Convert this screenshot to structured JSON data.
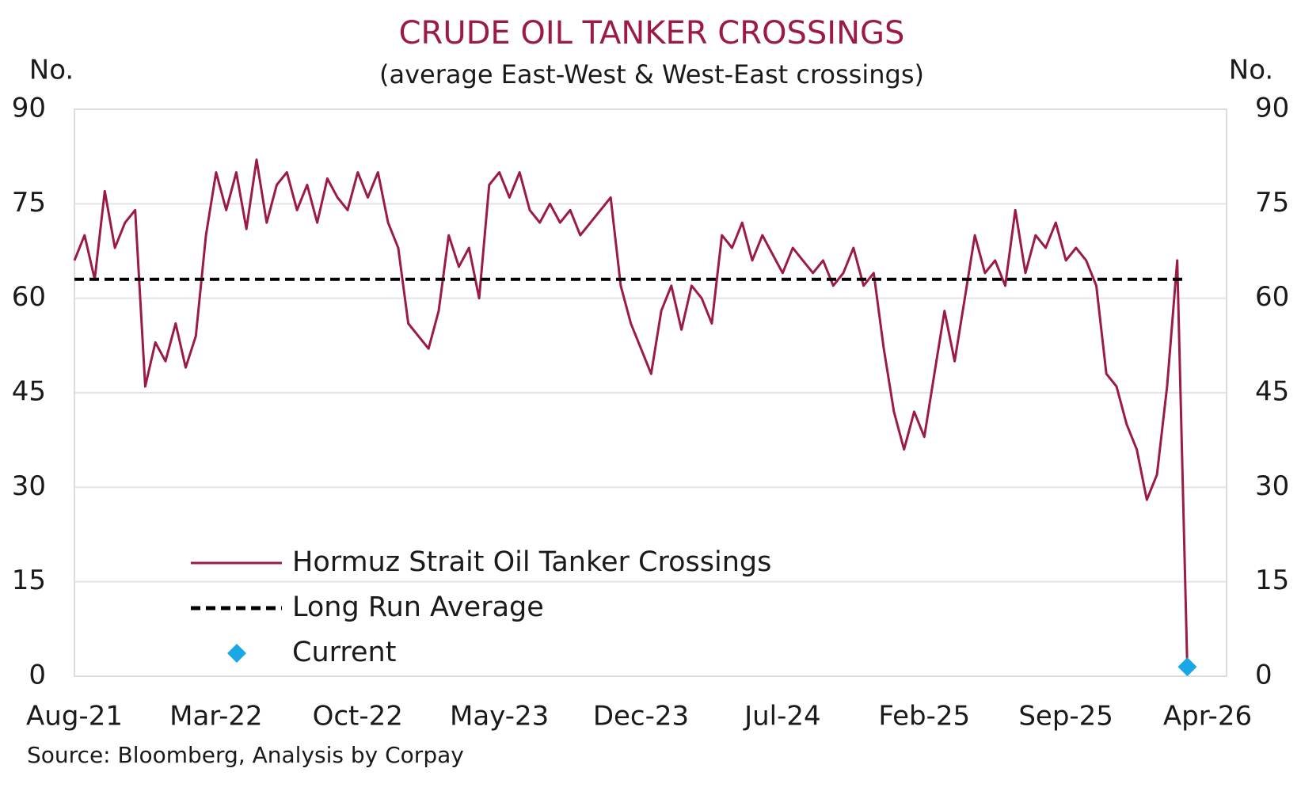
{
  "chart_data": {
    "type": "line",
    "title": "CRUDE OIL TANKER CROSSINGS",
    "subtitle": "(average East-West & West-East crossings)",
    "y_label": "No.",
    "y2_label": "No.",
    "source": "Source: Bloomberg, Analysis by Corpay",
    "categories": [
      "Aug-21",
      null,
      null,
      null,
      null,
      null,
      null,
      null,
      null,
      null,
      null,
      null,
      null,
      null,
      "Mar-22",
      null,
      null,
      null,
      null,
      null,
      null,
      null,
      null,
      null,
      null,
      null,
      null,
      null,
      "Oct-22",
      null,
      null,
      null,
      null,
      null,
      null,
      null,
      null,
      null,
      null,
      null,
      null,
      null,
      "May-23",
      null,
      null,
      null,
      null,
      null,
      null,
      null,
      null,
      null,
      null,
      null,
      null,
      null,
      "Dec-23",
      null,
      null,
      null,
      null,
      null,
      null,
      null,
      null,
      null,
      null,
      null,
      null,
      null,
      "Jul-24",
      null,
      null,
      null,
      null,
      null,
      null,
      null,
      null,
      null,
      null,
      null,
      null,
      null,
      "Feb-25",
      null,
      null,
      null,
      null,
      null,
      null,
      null,
      null,
      null,
      null,
      null,
      null,
      null,
      "Sep-25",
      null,
      null,
      null,
      null,
      null,
      null,
      null,
      null,
      null,
      null,
      null,
      null,
      null,
      "Apr-26"
    ],
    "series": [
      {
        "name": "Hormuz Strait Oil Tanker Crossings",
        "color": "#9b1b45",
        "style": "solid",
        "values": [
          66,
          70,
          63,
          77,
          68,
          72,
          74,
          46,
          53,
          50,
          56,
          49,
          54,
          70,
          80,
          74,
          80,
          71,
          82,
          72,
          78,
          80,
          74,
          78,
          72,
          79,
          76,
          74,
          80,
          76,
          80,
          72,
          68,
          56,
          54,
          52,
          58,
          70,
          65,
          68,
          60,
          78,
          80,
          76,
          80,
          74,
          72,
          75,
          72,
          74,
          70,
          72,
          74,
          76,
          62,
          56,
          52,
          48,
          58,
          62,
          55,
          62,
          60,
          56,
          70,
          68,
          72,
          66,
          70,
          67,
          64,
          68,
          66,
          64,
          66,
          62,
          64,
          68,
          62,
          64,
          52,
          42,
          36,
          42,
          38,
          48,
          58,
          50,
          60,
          70,
          64,
          66,
          62,
          74,
          64,
          70,
          68,
          72,
          66,
          68,
          66,
          62,
          48,
          46,
          40,
          36,
          28,
          32,
          46,
          66,
          1.5,
          null,
          null
        ]
      },
      {
        "name": "Long Run Average",
        "color": "#000000",
        "style": "dashed",
        "values": [
          63,
          63,
          63,
          63,
          63,
          63,
          63,
          63,
          63,
          63,
          63,
          63,
          63,
          63,
          63,
          63,
          63,
          63,
          63,
          63,
          63,
          63,
          63,
          63,
          63,
          63,
          63,
          63,
          63,
          63,
          63,
          63,
          63,
          63,
          63,
          63,
          63,
          63,
          63,
          63,
          63,
          63,
          63,
          63,
          63,
          63,
          63,
          63,
          63,
          63,
          63,
          63,
          63,
          63,
          63,
          63,
          63,
          63,
          63,
          63,
          63,
          63,
          63,
          63,
          63,
          63,
          63,
          63,
          63,
          63,
          63,
          63,
          63,
          63,
          63,
          63,
          63,
          63,
          63,
          63,
          63,
          63,
          63,
          63,
          63,
          63,
          63,
          63,
          63,
          63,
          63,
          63,
          63,
          63,
          63,
          63,
          63,
          63,
          63,
          63,
          63,
          63,
          63,
          63,
          63,
          63,
          63,
          63,
          63,
          63,
          63,
          null,
          null
        ]
      },
      {
        "name": "Current",
        "color": "#1aa7e6",
        "style": "marker",
        "values": [
          null,
          null,
          null,
          null,
          null,
          null,
          null,
          null,
          null,
          null,
          null,
          null,
          null,
          null,
          null,
          null,
          null,
          null,
          null,
          null,
          null,
          null,
          null,
          null,
          null,
          null,
          null,
          null,
          null,
          null,
          null,
          null,
          null,
          null,
          null,
          null,
          null,
          null,
          null,
          null,
          null,
          null,
          null,
          null,
          null,
          null,
          null,
          null,
          null,
          null,
          null,
          null,
          null,
          null,
          null,
          null,
          null,
          null,
          null,
          null,
          null,
          null,
          null,
          null,
          null,
          null,
          null,
          null,
          null,
          null,
          null,
          null,
          null,
          null,
          null,
          null,
          null,
          null,
          null,
          null,
          null,
          null,
          null,
          null,
          null,
          null,
          null,
          null,
          null,
          null,
          null,
          null,
          null,
          null,
          null,
          null,
          null,
          null,
          null,
          null,
          null,
          null,
          null,
          null,
          null,
          null,
          null,
          null,
          null,
          null,
          1.5,
          null,
          null
        ]
      }
    ],
    "ylim": [
      0,
      90
    ],
    "yticks": [
      0,
      15,
      30,
      45,
      60,
      75,
      90
    ],
    "y2lim": [
      0,
      90
    ],
    "y2ticks": [
      0,
      15,
      30,
      45,
      60,
      75,
      90
    ],
    "grid": true,
    "legend": "lower left"
  }
}
